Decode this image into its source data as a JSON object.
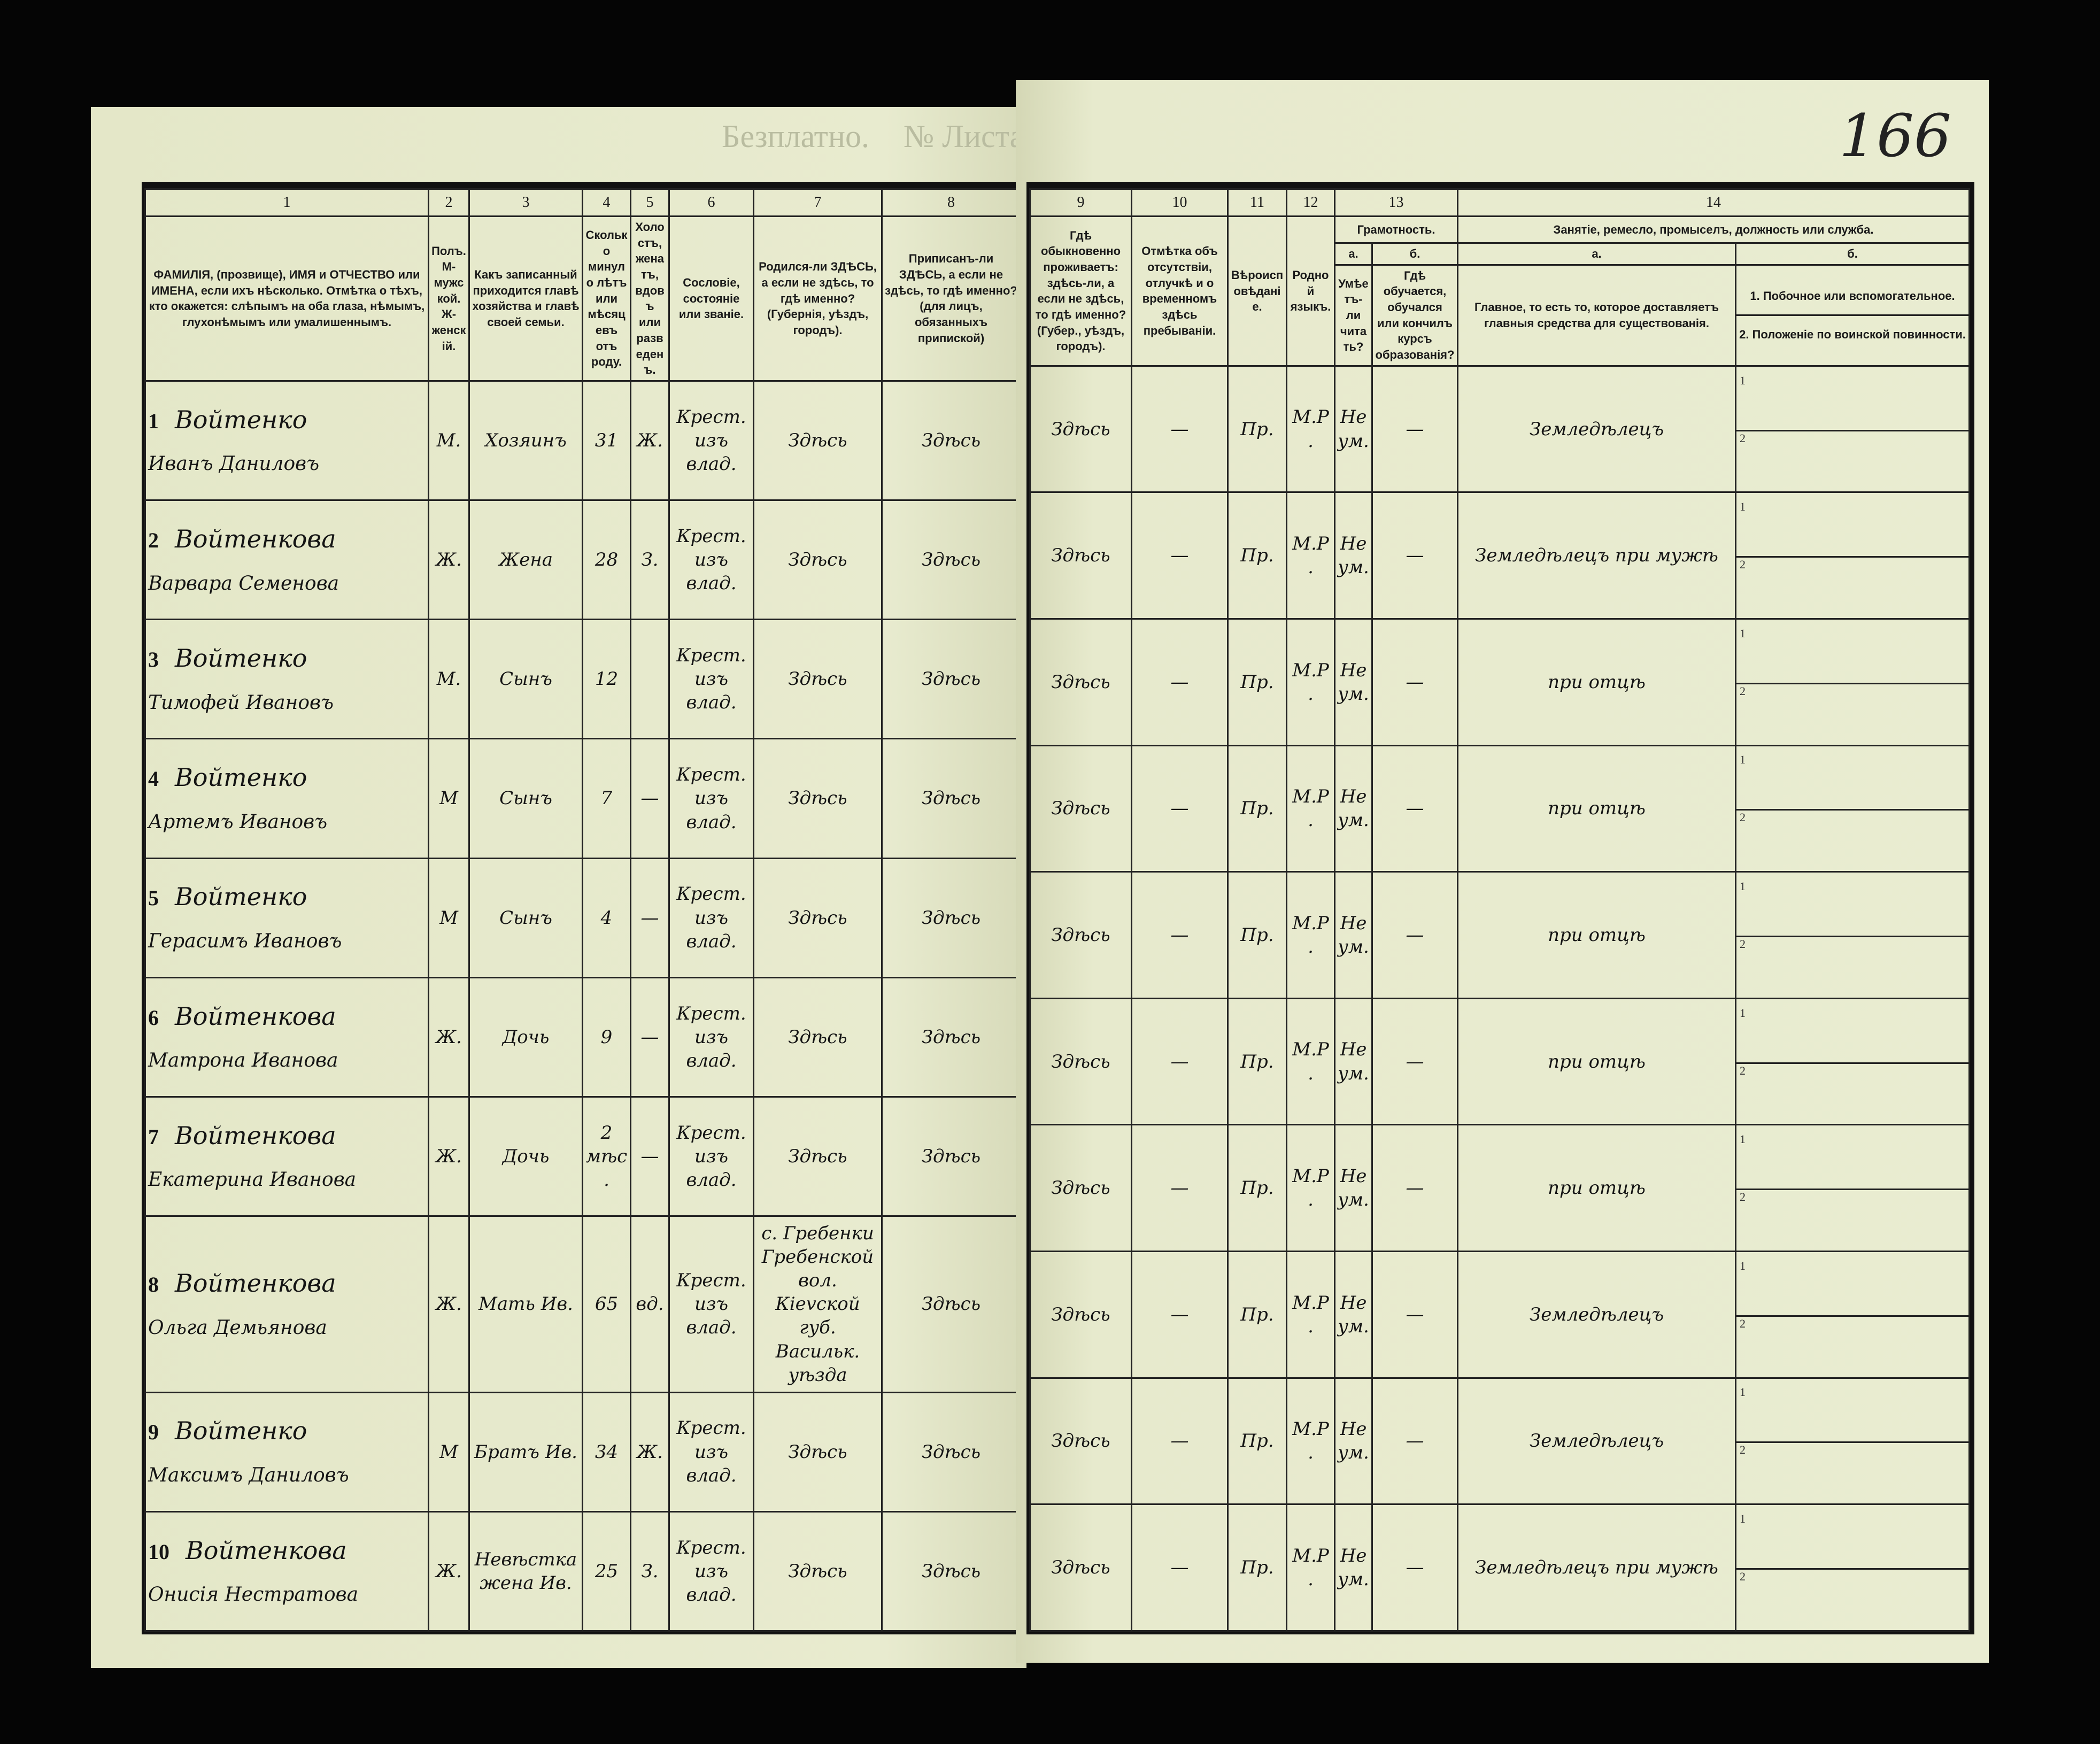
{
  "left_page": {
    "faint_heading": "Безплатно.",
    "faint_sheet": "№ Листа",
    "columns": [
      {
        "num": "1",
        "label": "ФАМИЛІЯ, (прозвище), ИМЯ и ОТЧЕСТВО или ИМЕНА, если ихъ нѣсколько. Отмѣтка о тѣхъ, кто окажется: слѣпымъ на оба глаза, нѣмымъ, глухонѣмымъ или умалишеннымъ."
      },
      {
        "num": "2",
        "label": "Полъ. М-мужской. Ж-женскій."
      },
      {
        "num": "3",
        "label": "Какъ записанный приходится главѣ хозяйства и главѣ своей семьи."
      },
      {
        "num": "4",
        "label": "Сколько минуло лѣтъ или мѣсяцевъ отъ роду."
      },
      {
        "num": "5",
        "label": "Холостъ, женатъ, вдовъ или разведенъ."
      },
      {
        "num": "6",
        "label": "Сословіе, состояніе или званіе."
      },
      {
        "num": "7",
        "label": "Родился-ли ЗДѢСЬ, а если не здѣсь, то гдѣ именно? (Губернія, уѣздъ, городъ)."
      },
      {
        "num": "8",
        "label": "Приписанъ-ли ЗДѢСЬ, а если не здѣсь, то гдѣ именно? (для лицъ, обязанныхъ припиской)"
      }
    ]
  },
  "right_page": {
    "folio": "166",
    "columns": [
      {
        "num": "9",
        "label": "Гдѣ обыкновенно проживаетъ: здѣсь-ли, а если не здѣсь, то гдѣ именно? (Губер., уѣздъ, городъ)."
      },
      {
        "num": "10",
        "label": "Отмѣтка объ отсутствіи, отлучкѣ и о временномъ здѣсь пребываніи."
      },
      {
        "num": "11",
        "label": "Вѣроисповѣданіе."
      },
      {
        "num": "12",
        "label": "Родной языкъ."
      },
      {
        "num": "13",
        "group": "Грамотность.",
        "a": "а.",
        "b": "б.",
        "a_label": "Умѣетъ-ли читать?",
        "b_label": "Гдѣ обучается, обучался или кончилъ курсъ образованія?"
      },
      {
        "num": "14",
        "group": "Занятіе, ремесло, промыселъ, должность или служба.",
        "a": "а.",
        "b": "б.",
        "a_label": "Главное, то есть то, которое доставляетъ главныя средства для существованія.",
        "b1": "1. Побочное или вспомогательное.",
        "b2": "2. Положеніе по воинской повинности."
      }
    ]
  },
  "rows": [
    {
      "n": "1",
      "surname": "Войтенко",
      "given": "Иванъ Даниловъ",
      "sex": "М.",
      "relation": "Хозяинъ",
      "age": "31",
      "marital": "Ж.",
      "estate": "Крест. изъ влад.",
      "born": "Здѣсь",
      "registered": "Здѣсь",
      "residence": "Здѣсь",
      "absence": "—",
      "religion": "Пр.",
      "language": "М.Р.",
      "reads": "Не ум.",
      "school": "—",
      "occupation": "Земледѣлецъ",
      "sub1": "1",
      "sub2": "2"
    },
    {
      "n": "2",
      "surname": "Войтенкова",
      "given": "Варвара Семенова",
      "sex": "Ж.",
      "relation": "Жена",
      "age": "28",
      "marital": "З.",
      "estate": "Крест. изъ влад.",
      "born": "Здѣсь",
      "registered": "Здѣсь",
      "residence": "Здѣсь",
      "absence": "—",
      "religion": "Пр.",
      "language": "М.Р.",
      "reads": "Не ум.",
      "school": "—",
      "occupation": "Земледѣлецъ при мужѣ",
      "sub1": "1",
      "sub2": "2"
    },
    {
      "n": "3",
      "surname": "Войтенко",
      "given": "Тимофей Ивановъ",
      "sex": "М.",
      "relation": "Сынъ",
      "age": "12",
      "marital": "",
      "estate": "Крест. изъ влад.",
      "born": "Здѣсь",
      "registered": "Здѣсь",
      "residence": "Здѣсь",
      "absence": "—",
      "religion": "Пр.",
      "language": "М.Р.",
      "reads": "Не ум.",
      "school": "—",
      "occupation": "при отцѣ",
      "sub1": "1",
      "sub2": "2"
    },
    {
      "n": "4",
      "surname": "Войтенко",
      "given": "Артемъ Ивановъ",
      "sex": "М",
      "relation": "Сынъ",
      "age": "7",
      "marital": "—",
      "estate": "Крест. изъ влад.",
      "born": "Здѣсь",
      "registered": "Здѣсь",
      "residence": "Здѣсь",
      "absence": "—",
      "religion": "Пр.",
      "language": "М.Р.",
      "reads": "Не ум.",
      "school": "—",
      "occupation": "при отцѣ",
      "sub1": "1",
      "sub2": "2"
    },
    {
      "n": "5",
      "surname": "Войтенко",
      "given": "Герасимъ Ивановъ",
      "sex": "М",
      "relation": "Сынъ",
      "age": "4",
      "marital": "—",
      "estate": "Крест. изъ влад.",
      "born": "Здѣсь",
      "registered": "Здѣсь",
      "residence": "Здѣсь",
      "absence": "—",
      "religion": "Пр.",
      "language": "М.Р.",
      "reads": "Не ум.",
      "school": "—",
      "occupation": "при отцѣ",
      "sub1": "1",
      "sub2": "2"
    },
    {
      "n": "6",
      "surname": "Войтенкова",
      "given": "Матрона Иванова",
      "sex": "Ж.",
      "relation": "Дочь",
      "age": "9",
      "marital": "—",
      "estate": "Крест. изъ влад.",
      "born": "Здѣсь",
      "registered": "Здѣсь",
      "residence": "Здѣсь",
      "absence": "—",
      "religion": "Пр.",
      "language": "М.Р.",
      "reads": "Не ум.",
      "school": "—",
      "occupation": "при отцѣ",
      "sub1": "1",
      "sub2": "2"
    },
    {
      "n": "7",
      "surname": "Войтенкова",
      "given": "Екатерина Иванова",
      "sex": "Ж.",
      "relation": "Дочь",
      "age": "2 мѣс.",
      "marital": "—",
      "estate": "Крест. изъ влад.",
      "born": "Здѣсь",
      "registered": "Здѣсь",
      "residence": "Здѣсь",
      "absence": "—",
      "religion": "Пр.",
      "language": "М.Р.",
      "reads": "Не ум.",
      "school": "—",
      "occupation": "при отцѣ",
      "sub1": "1",
      "sub2": "2"
    },
    {
      "n": "8",
      "surname": "Войтенкова",
      "given": "Ольга Демьянова",
      "sex": "Ж.",
      "relation": "Мать Ив.",
      "age": "65",
      "marital": "вд.",
      "estate": "Крест. изъ влад.",
      "born": "с. Гребенки Гребенской вол. Кievской губ. Васильк. уѣзда",
      "registered": "Здѣсь",
      "residence": "Здѣсь",
      "absence": "—",
      "religion": "Пр.",
      "language": "М.Р.",
      "reads": "Не ум.",
      "school": "—",
      "occupation": "Земледѣлецъ",
      "sub1": "1",
      "sub2": "2"
    },
    {
      "n": "9",
      "surname": "Войтенко",
      "given": "Максимъ Даниловъ",
      "sex": "М",
      "relation": "Братъ Ив.",
      "age": "34",
      "marital": "Ж.",
      "estate": "Крест. изъ влад.",
      "born": "Здѣсь",
      "registered": "Здѣсь",
      "residence": "Здѣсь",
      "absence": "—",
      "religion": "Пр.",
      "language": "М.Р.",
      "reads": "Не ум.",
      "school": "—",
      "occupation": "Земледѣлецъ",
      "sub1": "1",
      "sub2": "2"
    },
    {
      "n": "10",
      "surname": "Войтенкова",
      "given": "Онисія Нестратова",
      "sex": "Ж.",
      "relation": "Невѣстка жена Ив.",
      "age": "25",
      "marital": "З.",
      "estate": "Крест. изъ влад.",
      "born": "Здѣсь",
      "registered": "Здѣсь",
      "residence": "Здѣсь",
      "absence": "—",
      "religion": "Пр.",
      "language": "М.Р.",
      "reads": "Не ум.",
      "school": "—",
      "occupation": "Земледѣлецъ при мужѣ",
      "sub1": "1",
      "sub2": "2"
    }
  ]
}
